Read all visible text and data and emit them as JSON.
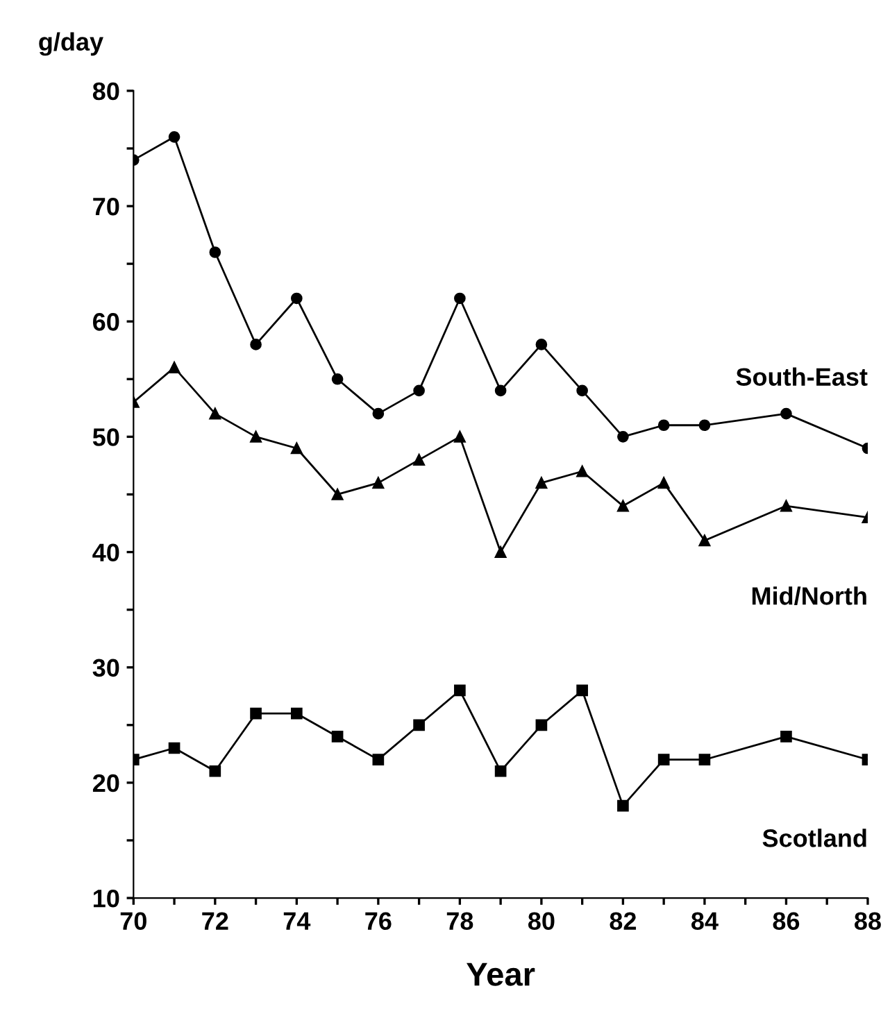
{
  "chart_data": {
    "type": "line",
    "xlabel": "Year",
    "ylabel": "g/day",
    "x": [
      70,
      71,
      72,
      73,
      74,
      75,
      76,
      77,
      78,
      79,
      80,
      81,
      82,
      83,
      84,
      86,
      88
    ],
    "series": [
      {
        "name": "South-East",
        "color": "#000000",
        "marker": "circle",
        "values": [
          74,
          76,
          66,
          58,
          62,
          55,
          52,
          54,
          62,
          54,
          58,
          54,
          50,
          51,
          51,
          52,
          49
        ]
      },
      {
        "name": "Mid/North",
        "color": "#000000",
        "marker": "triangle",
        "values": [
          53,
          56,
          52,
          50,
          49,
          45,
          46,
          48,
          50,
          40,
          46,
          47,
          44,
          46,
          41,
          44,
          43
        ]
      },
      {
        "name": "Scotland",
        "color": "#000000",
        "marker": "square",
        "values": [
          22,
          23,
          21,
          26,
          26,
          24,
          22,
          25,
          28,
          21,
          25,
          28,
          18,
          22,
          22,
          24,
          22
        ]
      }
    ],
    "xlim": [
      70,
      88
    ],
    "ylim": [
      10,
      80
    ],
    "xticks": [
      70,
      {
        "value": 71,
        "label": null
      },
      72,
      {
        "value": 73,
        "label": null
      },
      74,
      {
        "value": 75,
        "label": null
      },
      76,
      {
        "value": 77,
        "label": null
      },
      78,
      {
        "value": 79,
        "label": null
      },
      80,
      {
        "value": 81,
        "label": null
      },
      82,
      {
        "value": 83,
        "label": null
      },
      84,
      {
        "value": 85,
        "label": null
      },
      86,
      {
        "value": 87,
        "label": null
      },
      88
    ],
    "yticks": [
      10,
      {
        "value": 15,
        "label": null
      },
      20,
      {
        "value": 25,
        "label": null
      },
      30,
      {
        "value": 35,
        "label": null
      },
      40,
      {
        "value": 45,
        "label": null
      },
      50,
      {
        "value": 55,
        "label": null
      },
      60,
      {
        "value": 65,
        "label": null
      },
      70,
      {
        "value": 75,
        "label": null
      },
      80
    ],
    "grid": false,
    "legend": false,
    "line_style": "solid"
  }
}
